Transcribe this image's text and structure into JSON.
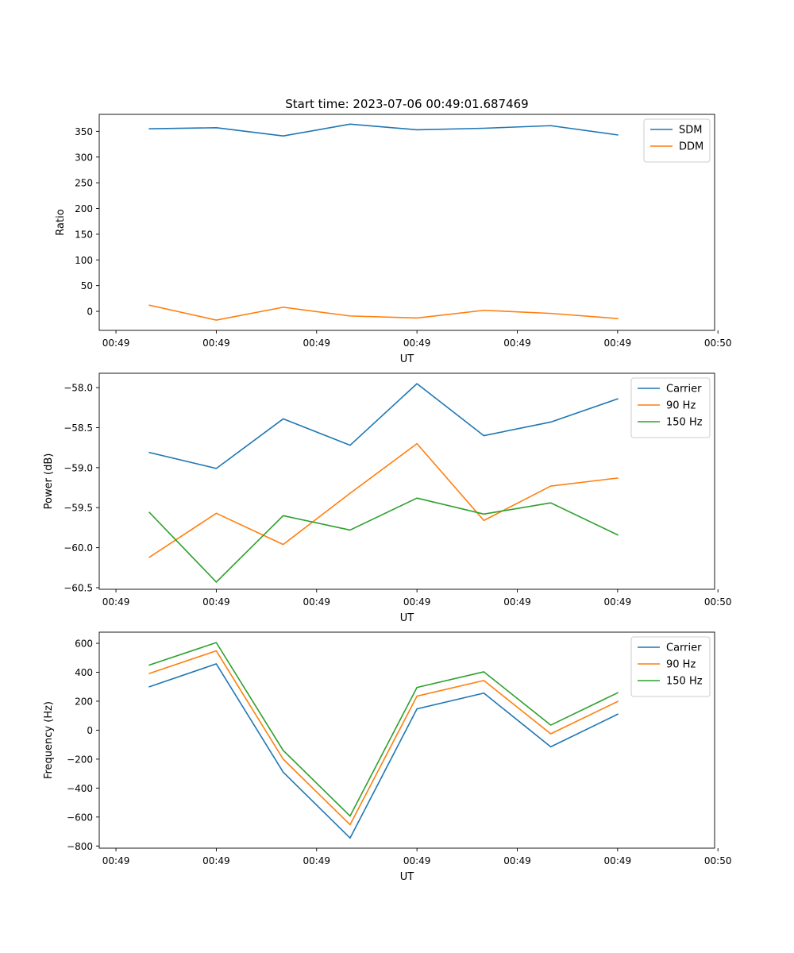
{
  "title": "Start time: 2023-07-06 00:49:01.687469",
  "colors": {
    "blue": "#1f77b4",
    "orange": "#ff7f0e",
    "green": "#2ca02c"
  },
  "chart_data": [
    {
      "type": "line",
      "title": "Start time: 2023-07-06 00:49:01.687469",
      "xlabel": "UT",
      "ylabel": "Ratio",
      "x": [
        1,
        2,
        3,
        4,
        5,
        6,
        7,
        8
      ],
      "xlim": [
        0.25,
        9.45
      ],
      "ylim": [
        -37,
        383
      ],
      "x_ticks": [
        0.5,
        2,
        3.5,
        5,
        6.5,
        8,
        9.5
      ],
      "x_tick_labels": [
        "00:49",
        "00:49",
        "00:49",
        "00:49",
        "00:49",
        "00:49",
        "00:50"
      ],
      "y_ticks": [
        0,
        50,
        100,
        150,
        200,
        250,
        300,
        350
      ],
      "y_tick_labels": [
        "0",
        "50",
        "100",
        "150",
        "200",
        "250",
        "300",
        "350"
      ],
      "legend_position": "top-right",
      "series": [
        {
          "name": "SDM",
          "color": "#1f77b4",
          "values": [
            355,
            357,
            341,
            364,
            353,
            356,
            361,
            343
          ]
        },
        {
          "name": "DDM",
          "color": "#ff7f0e",
          "values": [
            12,
            -17,
            8,
            -9,
            -13,
            2,
            -4,
            -14
          ]
        }
      ]
    },
    {
      "type": "line",
      "title": "",
      "xlabel": "UT",
      "ylabel": "Power (dB)",
      "x": [
        1,
        2,
        3,
        4,
        5,
        6,
        7,
        8
      ],
      "xlim": [
        0.25,
        9.45
      ],
      "ylim": [
        -60.52,
        -57.82
      ],
      "x_ticks": [
        0.5,
        2,
        3.5,
        5,
        6.5,
        8,
        9.5
      ],
      "x_tick_labels": [
        "00:49",
        "00:49",
        "00:49",
        "00:49",
        "00:49",
        "00:49",
        "00:50"
      ],
      "y_ticks": [
        -60.5,
        -60.0,
        -59.5,
        -59.0,
        -58.5,
        -58.0
      ],
      "y_tick_labels": [
        "−60.5",
        "−60.0",
        "−59.5",
        "−59.0",
        "−58.5",
        "−58.0"
      ],
      "legend_position": "top-right",
      "series": [
        {
          "name": "Carrier",
          "color": "#1f77b4",
          "values": [
            -58.81,
            -59.01,
            -58.39,
            -58.72,
            -57.95,
            -58.6,
            -58.43,
            -58.14
          ]
        },
        {
          "name": "90 Hz",
          "color": "#ff7f0e",
          "values": [
            -60.12,
            -59.57,
            -59.96,
            -59.32,
            -58.7,
            -59.66,
            -59.23,
            -59.13
          ]
        },
        {
          "name": "150 Hz",
          "color": "#2ca02c",
          "values": [
            -59.56,
            -60.43,
            -59.6,
            -59.78,
            -59.38,
            -59.58,
            -59.44,
            -59.84
          ]
        }
      ]
    },
    {
      "type": "line",
      "title": "",
      "xlabel": "UT",
      "ylabel": "Frequency (Hz)",
      "x": [
        1,
        2,
        3,
        4,
        5,
        6,
        7,
        8
      ],
      "xlim": [
        0.25,
        9.45
      ],
      "ylim": [
        -815,
        677
      ],
      "x_ticks": [
        0.5,
        2,
        3.5,
        5,
        6.5,
        8,
        9.5
      ],
      "x_tick_labels": [
        "00:49",
        "00:49",
        "00:49",
        "00:49",
        "00:49",
        "00:49",
        "00:50"
      ],
      "y_ticks": [
        -800,
        -600,
        -400,
        -200,
        0,
        200,
        400,
        600
      ],
      "y_tick_labels": [
        "−800",
        "−600",
        "−400",
        "−200",
        "0",
        "200",
        "400",
        "600"
      ],
      "legend_position": "top-right",
      "series": [
        {
          "name": "Carrier",
          "color": "#1f77b4",
          "values": [
            300,
            458,
            -290,
            -745,
            147,
            256,
            -115,
            110
          ]
        },
        {
          "name": "90 Hz",
          "color": "#ff7f0e",
          "values": [
            392,
            548,
            -200,
            -653,
            235,
            343,
            -25,
            198
          ]
        },
        {
          "name": "150 Hz",
          "color": "#2ca02c",
          "values": [
            450,
            605,
            -140,
            -593,
            295,
            403,
            35,
            258
          ]
        }
      ]
    }
  ]
}
